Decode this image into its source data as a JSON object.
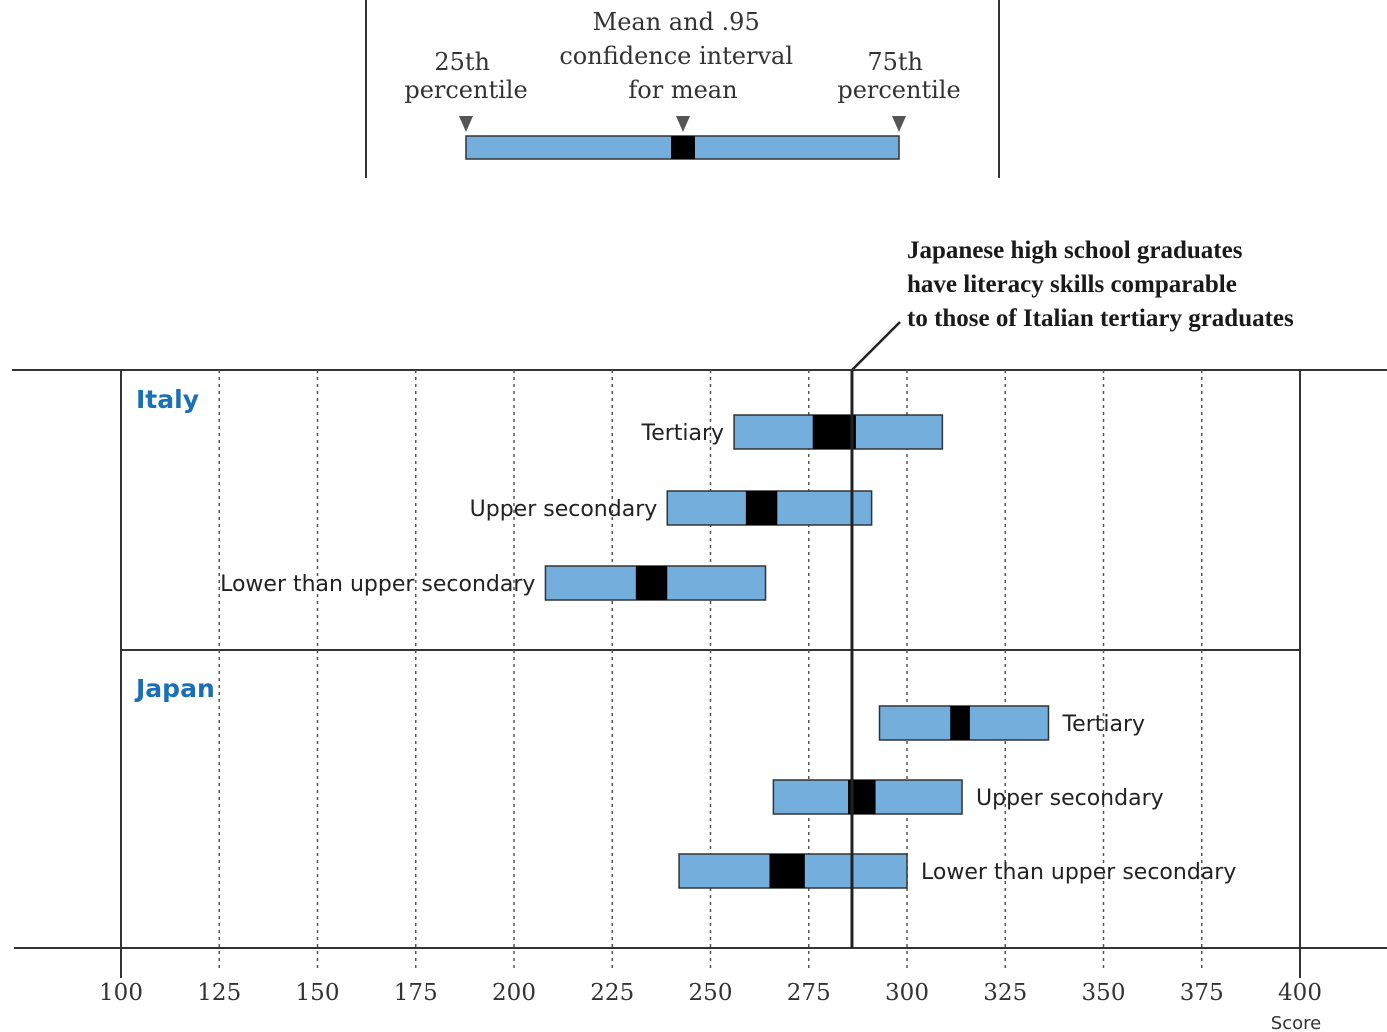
{
  "legend": {
    "p25_label": [
      "25th",
      "percentile"
    ],
    "mean_label": [
      "Mean and .95",
      "confidence interval",
      "for mean"
    ],
    "p75_label": [
      "75th",
      "percentile"
    ]
  },
  "annotation": {
    "lines": [
      "Japanese high school graduates",
      "have literacy skills comparable",
      "to those of Italian tertiary graduates"
    ]
  },
  "colors": {
    "bar_fill": "#74aedc",
    "ci_fill": "#000000",
    "country_label": "#1a6fb5"
  },
  "chart_data": {
    "type": "bar",
    "orientation": "horizontal",
    "encoding": "range bars: 25th to 75th percentile, black box = mean with .95 confidence interval",
    "xlim": [
      100,
      400
    ],
    "xticks": [
      100,
      125,
      150,
      175,
      200,
      225,
      250,
      275,
      300,
      325,
      350,
      375,
      400
    ],
    "xlabel": "Score",
    "grid": "vertical dashed",
    "reference_line": 286,
    "groups": [
      {
        "name": "Italy",
        "label_side": "left",
        "rows": [
          {
            "label": "Tertiary",
            "p25": 256,
            "p75": 309,
            "ci_low": 276,
            "ci_high": 287
          },
          {
            "label": "Upper secondary",
            "p25": 239,
            "p75": 291,
            "ci_low": 259,
            "ci_high": 267
          },
          {
            "label": "Lower than upper secondary",
            "p25": 208,
            "p75": 264,
            "ci_low": 231,
            "ci_high": 239
          }
        ]
      },
      {
        "name": "Japan",
        "label_side": "right",
        "rows": [
          {
            "label": "Tertiary",
            "p25": 293,
            "p75": 336,
            "ci_low": 311,
            "ci_high": 316
          },
          {
            "label": "Upper secondary",
            "p25": 266,
            "p75": 314,
            "ci_low": 285,
            "ci_high": 292
          },
          {
            "label": "Lower than upper secondary",
            "p25": 242,
            "p75": 300,
            "ci_low": 265,
            "ci_high": 274
          }
        ]
      }
    ]
  }
}
